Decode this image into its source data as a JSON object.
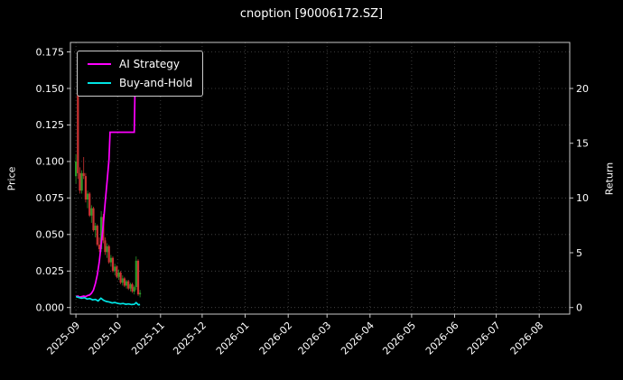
{
  "window": {
    "background": "#000000",
    "text_color": "#ffffff"
  },
  "chart_data": {
    "type": "line",
    "title": "cnoption [90006172.SZ]",
    "grid": true,
    "legend_position": "upper-left",
    "left_axis": {
      "label": "Price",
      "tick_values": [
        0.0,
        0.025,
        0.05,
        0.075,
        0.1,
        0.125,
        0.15,
        0.175
      ],
      "tick_labels": [
        "0.000",
        "0.025",
        "0.050",
        "0.075",
        "0.100",
        "0.125",
        "0.150",
        "0.175"
      ],
      "range": [
        -0.0045,
        0.1815
      ]
    },
    "right_axis": {
      "label": "Return",
      "tick_values": [
        0,
        5,
        10,
        15,
        20
      ],
      "tick_labels": [
        "0",
        "5",
        "10",
        "15",
        "20"
      ],
      "range": [
        -0.6,
        24.2
      ],
      "price_per_return_unit": 0.0075
    },
    "x_axis": {
      "tick_labels": [
        "2025-09",
        "2025-10",
        "2025-11",
        "2025-12",
        "2026-01",
        "2026-02",
        "2026-03",
        "2026-04",
        "2026-05",
        "2026-06",
        "2026-07",
        "2026-08"
      ],
      "tick_days": [
        0,
        30,
        61,
        91,
        122,
        153,
        181,
        212,
        242,
        273,
        303,
        334
      ],
      "range_days": [
        -4,
        356
      ],
      "label_rotation_deg": 45
    },
    "series": [
      {
        "name": "AI Strategy",
        "color": "#ff00ff",
        "axis": "return",
        "points": [
          [
            0,
            1.0
          ],
          [
            1.4,
            1.05
          ],
          [
            2.8,
            0.95
          ],
          [
            4.2,
            1.0
          ],
          [
            5.6,
            1.05
          ],
          [
            7,
            1.0
          ],
          [
            8.4,
            1.1
          ],
          [
            9.8,
            1.15
          ],
          [
            11.2,
            1.3
          ],
          [
            12.6,
            1.6
          ],
          [
            14,
            2.2
          ],
          [
            15.4,
            3.0
          ],
          [
            16.8,
            4.2
          ],
          [
            18.2,
            5.8
          ],
          [
            19.6,
            7.5
          ],
          [
            21,
            9.5
          ],
          [
            22.4,
            11.5
          ],
          [
            23.8,
            13.5
          ],
          [
            24.6,
            16.0
          ],
          [
            42,
            16.0
          ],
          [
            42.6,
            20.3
          ],
          [
            45,
            20.3
          ]
        ]
      },
      {
        "name": "Buy-and-Hold",
        "color": "#00e5e5",
        "axis": "return",
        "points": [
          [
            0,
            1.0
          ],
          [
            2,
            0.92
          ],
          [
            4,
            0.85
          ],
          [
            6,
            0.9
          ],
          [
            8,
            0.78
          ],
          [
            10,
            0.82
          ],
          [
            12,
            0.7
          ],
          [
            14,
            0.74
          ],
          [
            16,
            0.6
          ],
          [
            18,
            0.85
          ],
          [
            20,
            0.65
          ],
          [
            22,
            0.55
          ],
          [
            24,
            0.5
          ],
          [
            26,
            0.42
          ],
          [
            28,
            0.46
          ],
          [
            30,
            0.38
          ],
          [
            32,
            0.34
          ],
          [
            34,
            0.37
          ],
          [
            36,
            0.3
          ],
          [
            38,
            0.33
          ],
          [
            40,
            0.27
          ],
          [
            42,
            0.3
          ],
          [
            43.4,
            0.45
          ],
          [
            45,
            0.25
          ],
          [
            46.2,
            0.27
          ]
        ]
      }
    ],
    "candles": {
      "up_color": "#2a9a2a",
      "down_color": "#cc3232",
      "ohlc": [
        [
          0,
          0.09,
          0.105,
          0.085,
          0.1
        ],
        [
          1.4,
          0.15,
          0.168,
          0.088,
          0.092
        ],
        [
          2.8,
          0.092,
          0.096,
          0.078,
          0.08
        ],
        [
          4.2,
          0.08,
          0.094,
          0.078,
          0.092
        ],
        [
          5.6,
          0.092,
          0.103,
          0.088,
          0.09
        ],
        [
          7,
          0.09,
          0.092,
          0.072,
          0.074
        ],
        [
          8.4,
          0.074,
          0.08,
          0.068,
          0.078
        ],
        [
          9.8,
          0.078,
          0.079,
          0.062,
          0.063
        ],
        [
          11.2,
          0.063,
          0.07,
          0.058,
          0.068
        ],
        [
          12.6,
          0.068,
          0.069,
          0.052,
          0.053
        ],
        [
          14,
          0.053,
          0.058,
          0.048,
          0.056
        ],
        [
          15.4,
          0.056,
          0.057,
          0.042,
          0.043
        ],
        [
          16.8,
          0.043,
          0.048,
          0.038,
          0.04
        ],
        [
          18.2,
          0.04,
          0.066,
          0.038,
          0.062
        ],
        [
          19.6,
          0.062,
          0.064,
          0.044,
          0.046
        ],
        [
          21,
          0.046,
          0.048,
          0.036,
          0.038
        ],
        [
          22.4,
          0.038,
          0.044,
          0.034,
          0.042
        ],
        [
          23.8,
          0.042,
          0.043,
          0.03,
          0.031
        ],
        [
          25.2,
          0.031,
          0.036,
          0.028,
          0.034
        ],
        [
          26.6,
          0.034,
          0.035,
          0.024,
          0.025
        ],
        [
          28,
          0.025,
          0.03,
          0.022,
          0.028
        ],
        [
          29.4,
          0.028,
          0.029,
          0.02,
          0.021
        ],
        [
          30.8,
          0.021,
          0.026,
          0.019,
          0.024
        ],
        [
          32.2,
          0.024,
          0.025,
          0.016,
          0.017
        ],
        [
          33.6,
          0.017,
          0.022,
          0.015,
          0.02
        ],
        [
          35,
          0.02,
          0.021,
          0.014,
          0.015
        ],
        [
          36.4,
          0.015,
          0.019,
          0.013,
          0.018
        ],
        [
          37.8,
          0.018,
          0.019,
          0.012,
          0.013
        ],
        [
          39.2,
          0.013,
          0.017,
          0.011,
          0.016
        ],
        [
          40.6,
          0.016,
          0.017,
          0.01,
          0.011
        ],
        [
          42,
          0.011,
          0.015,
          0.009,
          0.014
        ],
        [
          43.4,
          0.014,
          0.035,
          0.012,
          0.032
        ],
        [
          44.8,
          0.032,
          0.033,
          0.008,
          0.009
        ],
        [
          46.2,
          0.009,
          0.012,
          0.007,
          0.01
        ]
      ]
    },
    "style": {
      "grid_color": "#4d4d4d",
      "spine_color": "#c8c8c8",
      "tick_color": "#c8c8c8"
    }
  }
}
